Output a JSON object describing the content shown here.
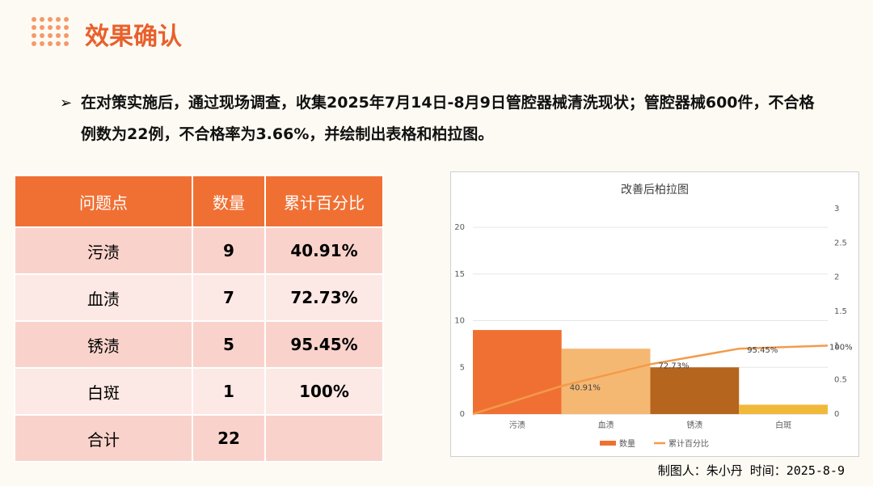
{
  "header": {
    "title": "效果确认"
  },
  "bullet": "在对策实施后，通过现场调查，收集2025年7月14日-8月9日管腔器械清洗现状；管腔器械600件，不合格例数为22例，不合格率为3.66%，并绘制出表格和柏拉图。",
  "table": {
    "columns": [
      "问题点",
      "数量",
      "累计百分比"
    ],
    "rows": [
      [
        "污渍",
        "9",
        "40.91%"
      ],
      [
        "血渍",
        "7",
        "72.73%"
      ],
      [
        "锈渍",
        "5",
        "95.45%"
      ],
      [
        "白斑",
        "1",
        "100%"
      ],
      [
        "合计",
        "22"
      ]
    ]
  },
  "chart_data": {
    "type": "pareto",
    "title": "改善后柏拉图",
    "categories": [
      "污渍",
      "血渍",
      "锈渍",
      "白斑"
    ],
    "series": [
      {
        "name": "数量",
        "type": "bar",
        "colors": [
          "#f07033",
          "#f5b872",
          "#b5651d",
          "#f0b93a"
        ],
        "values": [
          9,
          7,
          5,
          1
        ]
      },
      {
        "name": "累计百分比",
        "type": "line",
        "axis": "y2",
        "color": "#f39a4a",
        "x": [
          0,
          1,
          2,
          3,
          4
        ],
        "values": [
          0,
          0.4091,
          0.7273,
          0.9545,
          1
        ],
        "value_labels": [
          null,
          "40.91%",
          "72.73%",
          "95.45%",
          "100%"
        ]
      }
    ],
    "ylim": [
      0,
      22
    ],
    "yticks": [
      0,
      5,
      10,
      15,
      20
    ],
    "y2lim": [
      0,
      3
    ],
    "y2ticks": [
      0,
      0.5,
      1,
      1.5,
      2,
      2.5,
      3
    ],
    "grid": true,
    "legend": "bottom"
  },
  "footer": "制图人：朱小丹 时间：2025-8-9"
}
